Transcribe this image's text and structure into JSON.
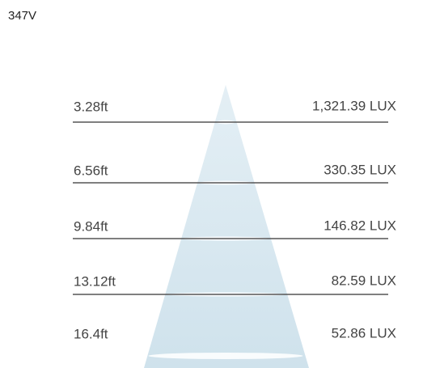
{
  "header": {
    "title": "347V"
  },
  "rows": [
    {
      "distance": "3.28ft",
      "lux": "1,321.39 LUX"
    },
    {
      "distance": "6.56ft",
      "lux": "330.35 LUX"
    },
    {
      "distance": "9.84ft",
      "lux": "146.82 LUX"
    },
    {
      "distance": "13.12ft",
      "lux": "82.59 LUX"
    },
    {
      "distance": "16.4ft",
      "lux": "52.86 LUX"
    }
  ]
}
